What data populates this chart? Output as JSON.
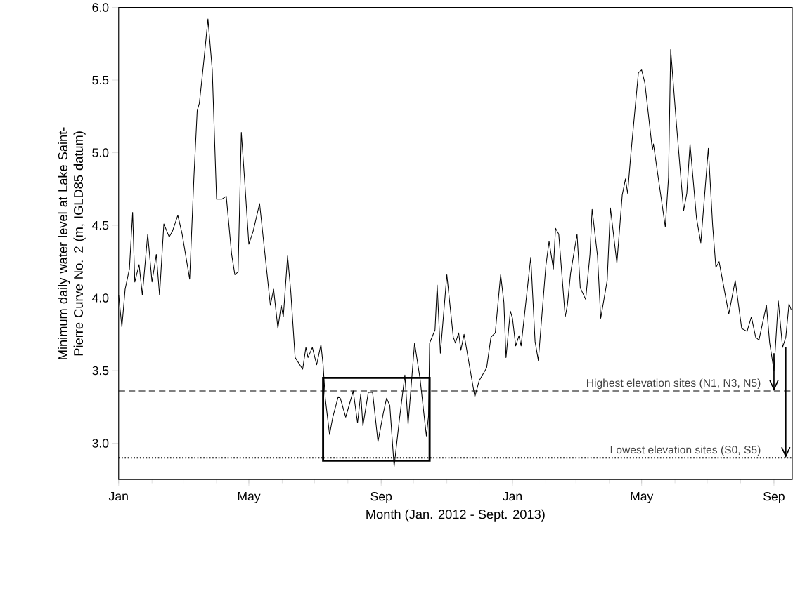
{
  "chart_data": {
    "type": "line",
    "xlabel": "Month (Jan. 2012 - Sept. 2013)",
    "ylabel": "Minimum daily water level at Lake Saint-Pierre Curve No. 2 (m, IGLD85 datum)",
    "xlim": [
      "2012-01-01",
      "2013-09-18"
    ],
    "ylim": [
      2.75,
      6.0
    ],
    "xticks": [
      {
        "value": "2012-01-01",
        "label": "Jan"
      },
      {
        "value": "2012-05-01",
        "label": "May"
      },
      {
        "value": "2012-09-01",
        "label": "Sep"
      },
      {
        "value": "2013-01-01",
        "label": "Jan"
      },
      {
        "value": "2013-05-01",
        "label": "May"
      },
      {
        "value": "2013-09-01",
        "label": "Sep"
      }
    ],
    "yticks": [
      {
        "value": 3.0,
        "label": "3.0"
      },
      {
        "value": 3.5,
        "label": "3.5"
      },
      {
        "value": 4.0,
        "label": "4.0"
      },
      {
        "value": 4.5,
        "label": "4.5"
      },
      {
        "value": 5.0,
        "label": "5.0"
      },
      {
        "value": 5.5,
        "label": "5.5"
      },
      {
        "value": 6.0,
        "label": "6.0"
      }
    ],
    "ref_lines": [
      {
        "axis": "y",
        "value": 3.36,
        "label": "Highest elevation sites (N1, N3, N5)",
        "line_style": "dashed",
        "color": "#000000"
      },
      {
        "axis": "y",
        "value": 2.9,
        "label": "Lowest elevation sites (S0, S5)",
        "line_style": "dotted",
        "color": "#000000"
      }
    ],
    "series": [
      {
        "color": "#000000",
        "x": [
          "2012-01-01",
          "2012-01-04",
          "2012-01-07",
          "2012-01-11",
          "2012-01-14",
          "2012-01-16",
          "2012-01-20",
          "2012-01-23",
          "2012-01-28",
          "2012-02-01",
          "2012-02-05",
          "2012-02-08",
          "2012-02-12",
          "2012-02-17",
          "2012-02-20",
          "2012-02-25",
          "2012-02-29",
          "2012-03-07",
          "2012-03-11",
          "2012-03-14",
          "2012-03-16",
          "2012-03-20",
          "2012-03-24",
          "2012-03-28",
          "2012-04-01",
          "2012-04-06",
          "2012-04-10",
          "2012-04-15",
          "2012-04-18",
          "2012-04-21",
          "2012-04-24",
          "2012-04-27",
          "2012-05-01",
          "2012-05-05",
          "2012-05-11",
          "2012-05-16",
          "2012-05-21",
          "2012-05-24",
          "2012-05-28",
          "2012-05-31",
          "2012-06-02",
          "2012-06-06",
          "2012-06-09",
          "2012-06-13",
          "2012-06-20",
          "2012-06-23",
          "2012-06-25",
          "2012-06-29",
          "2012-07-03",
          "2012-07-07",
          "2012-07-09",
          "2012-07-11",
          "2012-07-15",
          "2012-07-18",
          "2012-07-23",
          "2012-07-25",
          "2012-07-30",
          "2012-08-06",
          "2012-08-10",
          "2012-08-13",
          "2012-08-15",
          "2012-08-20",
          "2012-08-24",
          "2012-08-29",
          "2012-09-03",
          "2012-09-06",
          "2012-09-09",
          "2012-09-13",
          "2012-09-18",
          "2012-09-23",
          "2012-09-26",
          "2012-10-02",
          "2012-10-07",
          "2012-10-13",
          "2012-10-15",
          "2012-10-16",
          "2012-10-21",
          "2012-10-23",
          "2012-10-26",
          "2012-11-01",
          "2012-11-07",
          "2012-11-09",
          "2012-11-12",
          "2012-11-14",
          "2012-11-17",
          "2012-11-27",
          "2012-12-01",
          "2012-12-08",
          "2012-12-12",
          "2012-12-16",
          "2012-12-21",
          "2012-12-24",
          "2012-12-26",
          "2012-12-30",
          "2013-01-01",
          "2013-01-04",
          "2013-01-07",
          "2013-01-09",
          "2013-01-18",
          "2013-01-22",
          "2013-01-25",
          "2013-02-01",
          "2013-02-04",
          "2013-02-08",
          "2013-02-10",
          "2013-02-13",
          "2013-02-19",
          "2013-02-21",
          "2013-02-24",
          "2013-03-02",
          "2013-03-05",
          "2013-03-10",
          "2013-03-14",
          "2013-03-16",
          "2013-03-21",
          "2013-03-24",
          "2013-03-30",
          "2013-04-02",
          "2013-04-08",
          "2013-04-11",
          "2013-04-13",
          "2013-04-16",
          "2013-04-18",
          "2013-04-21",
          "2013-04-28",
          "2013-05-01",
          "2013-05-04",
          "2013-05-11",
          "2013-05-12",
          "2013-05-17",
          "2013-05-23",
          "2013-05-26",
          "2013-05-28",
          "2013-06-02",
          "2013-06-09",
          "2013-06-12",
          "2013-06-15",
          "2013-06-21",
          "2013-06-25",
          "2013-07-02",
          "2013-07-06",
          "2013-07-09",
          "2013-07-12",
          "2013-07-21",
          "2013-07-27",
          "2013-08-02",
          "2013-08-07",
          "2013-08-11",
          "2013-08-15",
          "2013-08-18",
          "2013-08-25",
          "2013-08-28",
          "2013-09-01",
          "2013-09-05",
          "2013-09-09",
          "2013-09-12",
          "2013-09-15",
          "2013-09-17"
        ],
        "values": [
          4.02,
          3.8,
          4.06,
          4.2,
          4.59,
          4.11,
          4.23,
          4.02,
          4.44,
          4.11,
          4.3,
          4.02,
          4.51,
          4.42,
          4.46,
          4.57,
          4.44,
          4.13,
          4.84,
          5.29,
          5.34,
          5.62,
          5.92,
          5.57,
          4.68,
          4.68,
          4.7,
          4.3,
          4.16,
          4.18,
          5.14,
          4.82,
          4.37,
          4.46,
          4.65,
          4.3,
          3.95,
          4.06,
          3.79,
          3.95,
          3.87,
          4.29,
          4.04,
          3.59,
          3.51,
          3.66,
          3.59,
          3.66,
          3.54,
          3.68,
          3.54,
          3.31,
          3.06,
          3.18,
          3.32,
          3.31,
          3.18,
          3.36,
          3.14,
          3.34,
          3.12,
          3.35,
          3.35,
          3.01,
          3.21,
          3.31,
          3.26,
          2.84,
          3.17,
          3.47,
          3.13,
          3.69,
          3.45,
          3.05,
          3.19,
          3.69,
          3.78,
          4.09,
          3.62,
          4.16,
          3.73,
          3.69,
          3.76,
          3.64,
          3.75,
          3.32,
          3.43,
          3.52,
          3.73,
          3.76,
          4.16,
          3.97,
          3.59,
          3.91,
          3.86,
          3.67,
          3.74,
          3.67,
          4.28,
          3.7,
          3.57,
          4.22,
          4.39,
          4.2,
          4.48,
          4.44,
          3.87,
          3.95,
          4.17,
          4.44,
          4.07,
          3.99,
          4.3,
          4.61,
          4.29,
          3.86,
          4.12,
          4.62,
          4.24,
          4.52,
          4.71,
          4.82,
          4.72,
          4.99,
          5.55,
          5.57,
          5.48,
          5.02,
          5.06,
          4.8,
          4.49,
          4.83,
          5.71,
          5.23,
          4.6,
          4.72,
          5.06,
          4.55,
          4.38,
          5.03,
          4.5,
          4.21,
          4.25,
          3.89,
          4.12,
          3.79,
          3.77,
          3.87,
          3.73,
          3.71,
          3.95,
          3.69,
          3.5,
          3.98,
          3.66,
          3.73,
          3.96,
          3.92
        ]
      }
    ]
  }
}
